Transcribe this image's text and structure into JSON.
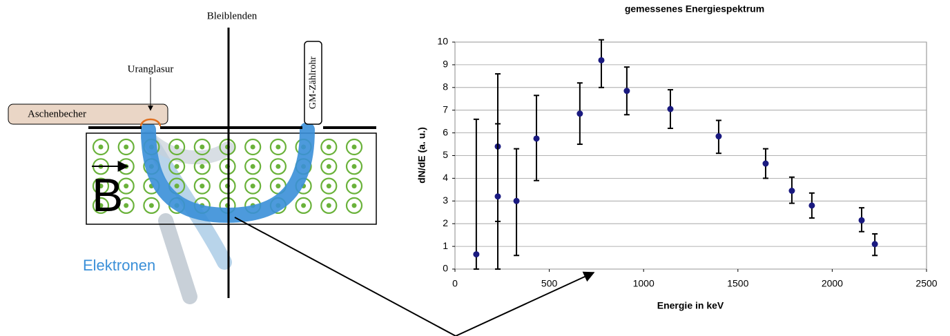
{
  "diagram": {
    "barrier_label": "Bleiblenden",
    "glaze_label": "Uranglasur",
    "ashtray_label": "Aschenbecher",
    "counter_label": "GM-Zählrohr",
    "field_label": "B",
    "electron_label": "Elektronen"
  },
  "chart_data": {
    "type": "scatter",
    "title": "gemessenes Energiespektrum",
    "xlabel": "Energie in keV",
    "ylabel": "dN/dE (a. u.)",
    "xlim": [
      0,
      2500
    ],
    "ylim": [
      0,
      10
    ],
    "xticks": [
      0,
      500,
      1000,
      1500,
      2000,
      2500
    ],
    "yticks": [
      0,
      1,
      2,
      3,
      4,
      5,
      6,
      7,
      8,
      9,
      10
    ],
    "grid": true,
    "x": [
      113,
      227,
      227,
      326,
      432,
      662,
      776,
      911,
      1142,
      1398,
      1647,
      1786,
      1892,
      2156,
      2226
    ],
    "series": [
      {
        "color": "#1a1a80",
        "values": [
          0.65,
          5.4,
          3.2,
          3.0,
          5.75,
          6.85,
          9.2,
          7.85,
          7.05,
          5.85,
          4.65,
          3.45,
          2.8,
          2.15,
          1.1
        ],
        "lower": [
          0,
          2.1,
          0,
          0.6,
          3.9,
          5.5,
          8.0,
          6.8,
          6.2,
          5.1,
          4.0,
          2.9,
          2.25,
          1.65,
          0.6
        ],
        "upper": [
          6.6,
          8.6,
          6.4,
          5.3,
          7.65,
          8.2,
          10.1,
          8.9,
          7.9,
          6.55,
          5.3,
          4.05,
          3.35,
          2.7,
          1.55
        ]
      }
    ]
  }
}
